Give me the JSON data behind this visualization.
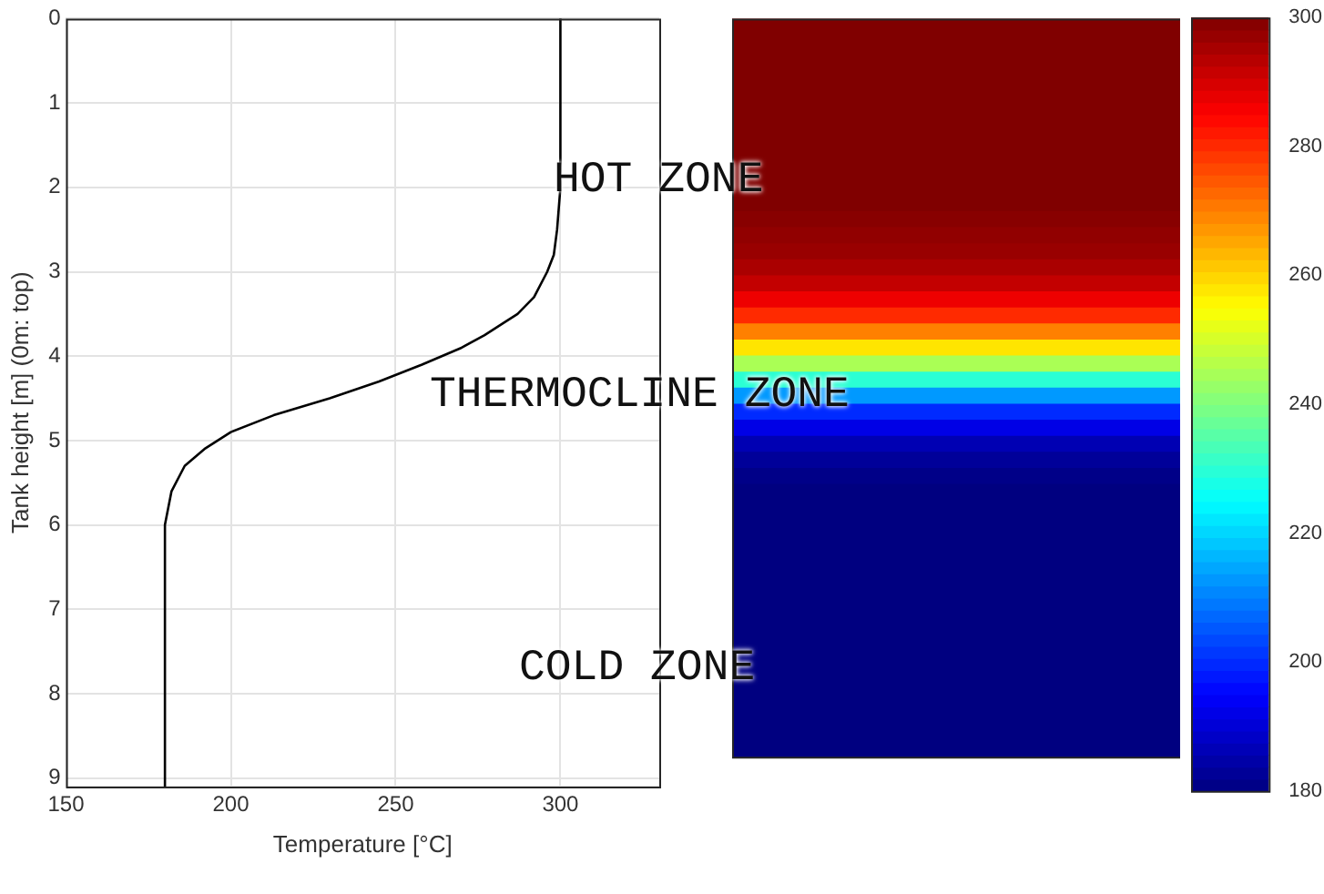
{
  "chart_data": [
    {
      "type": "line",
      "xlabel": "Temperature [°C]",
      "ylabel": "Tank height [m] (0m: top)",
      "xlim": [
        150,
        330
      ],
      "xticks": [
        150,
        200,
        250,
        300
      ],
      "ylim": [
        9.1,
        0
      ],
      "yticks": [
        0,
        1,
        2,
        3,
        4,
        5,
        6,
        7,
        8,
        9
      ],
      "grid": true,
      "annotations": [
        "HOT ZONE",
        "THERMOCLINE ZONE",
        "COLD ZONE"
      ],
      "series": [
        {
          "color": "#000000",
          "x": [
            300,
            300,
            299,
            298,
            296,
            292,
            287,
            283,
            277,
            270,
            264,
            258,
            245,
            230,
            213,
            200,
            192,
            186,
            182,
            180,
            180
          ],
          "values": [
            0,
            2,
            2.5,
            2.8,
            3,
            3.3,
            3.5,
            3.6,
            3.75,
            3.9,
            4,
            4.1,
            4.3,
            4.5,
            4.7,
            4.9,
            5.1,
            5.3,
            5.6,
            6,
            9.1
          ]
        }
      ]
    },
    {
      "type": "heatmap",
      "categories": [
        null
      ],
      "y_categories": [
        null,
        null,
        null,
        null,
        null,
        null,
        null,
        null,
        null,
        null,
        null,
        null,
        null,
        null,
        null,
        null,
        null,
        null,
        null,
        null,
        null,
        null,
        null,
        null,
        null,
        null,
        null,
        null,
        null,
        null,
        null,
        null,
        null,
        null,
        null,
        null,
        null,
        null,
        null,
        null,
        null,
        null,
        null,
        null,
        null,
        null
      ],
      "clim": [
        180,
        300
      ],
      "cticks": [
        180,
        200,
        220,
        240,
        260,
        280,
        300
      ],
      "cells": [
        [
          300
        ],
        [
          300
        ],
        [
          300
        ],
        [
          300
        ],
        [
          300
        ],
        [
          300
        ],
        [
          300
        ],
        [
          300
        ],
        [
          300
        ],
        [
          300
        ],
        [
          300
        ],
        [
          300
        ],
        [
          299
        ],
        [
          298
        ],
        [
          297
        ],
        [
          295
        ],
        [
          292
        ],
        [
          287
        ],
        [
          280
        ],
        [
          270
        ],
        [
          258
        ],
        [
          245
        ],
        [
          230
        ],
        [
          213
        ],
        [
          200
        ],
        [
          192
        ],
        [
          186
        ],
        [
          183
        ],
        [
          181
        ],
        [
          180
        ],
        [
          180
        ],
        [
          180
        ],
        [
          180
        ],
        [
          180
        ],
        [
          180
        ],
        [
          180
        ],
        [
          180
        ],
        [
          180
        ],
        [
          180
        ],
        [
          180
        ],
        [
          180
        ],
        [
          180
        ],
        [
          180
        ],
        [
          180
        ],
        [
          180
        ],
        [
          180
        ]
      ]
    }
  ]
}
